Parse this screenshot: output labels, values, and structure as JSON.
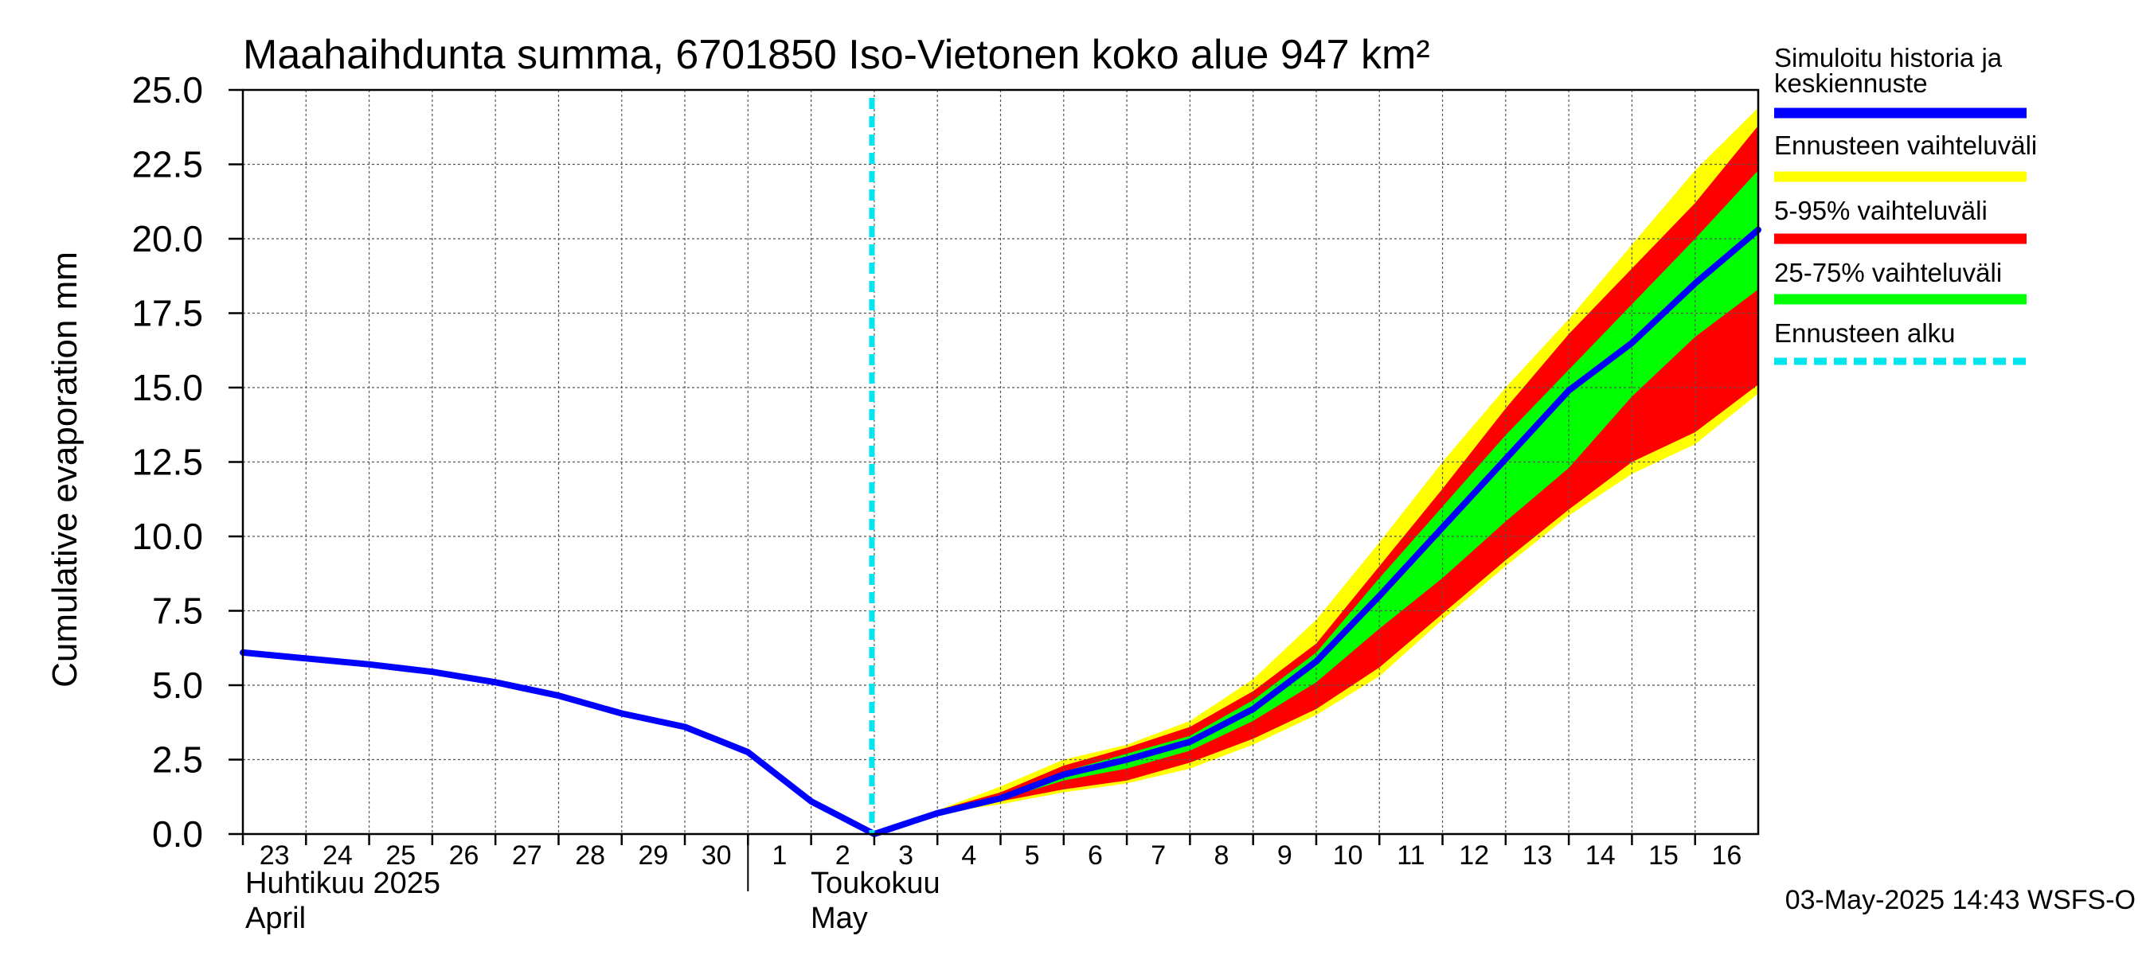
{
  "chart_data": {
    "type": "area",
    "title": "Maahaihdunta summa, 6701850 Iso-Vietonen koko alue 947 km²",
    "ylabel": "Cumulative evaporation   mm",
    "ylim": [
      0,
      25
    ],
    "yticks": [
      "0.0",
      "2.5",
      "5.0",
      "7.5",
      "10.0",
      "12.5",
      "15.0",
      "17.5",
      "20.0",
      "22.5",
      "25.0"
    ],
    "x_start": "2025-04-23",
    "x_end": "2025-05-17",
    "x_tick_labels": [
      {
        "date": "2025-04-23",
        "label": "23"
      },
      {
        "date": "2025-04-24",
        "label": "24"
      },
      {
        "date": "2025-04-25",
        "label": "25"
      },
      {
        "date": "2025-04-26",
        "label": "26"
      },
      {
        "date": "2025-04-27",
        "label": "27"
      },
      {
        "date": "2025-04-28",
        "label": "28"
      },
      {
        "date": "2025-04-29",
        "label": "29"
      },
      {
        "date": "2025-04-30",
        "label": "30"
      },
      {
        "date": "2025-05-01",
        "label": "1"
      },
      {
        "date": "2025-05-02",
        "label": "2"
      },
      {
        "date": "2025-05-03",
        "label": "3"
      },
      {
        "date": "2025-05-04",
        "label": "4"
      },
      {
        "date": "2025-05-05",
        "label": "5"
      },
      {
        "date": "2025-05-06",
        "label": "6"
      },
      {
        "date": "2025-05-07",
        "label": "7"
      },
      {
        "date": "2025-05-08",
        "label": "8"
      },
      {
        "date": "2025-05-09",
        "label": "9"
      },
      {
        "date": "2025-05-10",
        "label": "10"
      },
      {
        "date": "2025-05-11",
        "label": "11"
      },
      {
        "date": "2025-05-12",
        "label": "12"
      },
      {
        "date": "2025-05-13",
        "label": "13"
      },
      {
        "date": "2025-05-14",
        "label": "14"
      },
      {
        "date": "2025-05-15",
        "label": "15"
      },
      {
        "date": "2025-05-16",
        "label": "16"
      }
    ],
    "month_labels": {
      "april_fi": "Huhtikuu  2025",
      "april_en": "April",
      "may_fi": "Toukokuu",
      "may_en": "May"
    },
    "grid": true,
    "legend_position": "right",
    "forecast_start": "2025-05-03",
    "series": [
      {
        "name": "Simuloitu historia ja keskiennuste",
        "role": "median",
        "color": "#0000ff",
        "points": [
          [
            "2025-04-23",
            6.1
          ],
          [
            "2025-04-24",
            5.9
          ],
          [
            "2025-04-25",
            5.7
          ],
          [
            "2025-04-26",
            5.45
          ],
          [
            "2025-04-27",
            5.1
          ],
          [
            "2025-04-28",
            4.65
          ],
          [
            "2025-04-29",
            4.05
          ],
          [
            "2025-04-30",
            3.6
          ],
          [
            "2025-05-01",
            2.75
          ],
          [
            "2025-05-02",
            1.1
          ],
          [
            "2025-05-03",
            0.0
          ],
          [
            "2025-05-04",
            0.7
          ],
          [
            "2025-05-05",
            1.2
          ],
          [
            "2025-05-06",
            2.0
          ],
          [
            "2025-05-07",
            2.5
          ],
          [
            "2025-05-08",
            3.1
          ],
          [
            "2025-05-09",
            4.2
          ],
          [
            "2025-05-10",
            5.8
          ],
          [
            "2025-05-11",
            8.0
          ],
          [
            "2025-05-12",
            10.3
          ],
          [
            "2025-05-13",
            12.6
          ],
          [
            "2025-05-14",
            14.9
          ],
          [
            "2025-05-15",
            16.5
          ],
          [
            "2025-05-16",
            18.5
          ],
          [
            "2025-05-17",
            20.3
          ]
        ]
      },
      {
        "name": "Ennusteen vaihteluväli",
        "role": "band",
        "color": "#ffff00",
        "x": [
          "2025-05-03",
          "2025-05-04",
          "2025-05-05",
          "2025-05-06",
          "2025-05-07",
          "2025-05-08",
          "2025-05-09",
          "2025-05-10",
          "2025-05-11",
          "2025-05-12",
          "2025-05-13",
          "2025-05-14",
          "2025-05-15",
          "2025-05-16",
          "2025-05-17"
        ],
        "upper": [
          0.0,
          0.8,
          1.6,
          2.5,
          3.0,
          3.8,
          5.2,
          7.2,
          9.8,
          12.5,
          15.0,
          17.3,
          19.8,
          22.3,
          24.4
        ],
        "lower": [
          0.0,
          0.7,
          1.0,
          1.4,
          1.7,
          2.2,
          3.0,
          4.0,
          5.3,
          7.2,
          9.0,
          10.7,
          12.1,
          13.1,
          14.8
        ]
      },
      {
        "name": "5-95% vaihteluväli",
        "role": "band",
        "color": "#ff0000",
        "x": [
          "2025-05-03",
          "2025-05-04",
          "2025-05-05",
          "2025-05-06",
          "2025-05-07",
          "2025-05-08",
          "2025-05-09",
          "2025-05-10",
          "2025-05-11",
          "2025-05-12",
          "2025-05-13",
          "2025-05-14",
          "2025-05-15",
          "2025-05-16",
          "2025-05-17"
        ],
        "upper": [
          0.0,
          0.8,
          1.4,
          2.3,
          2.9,
          3.6,
          4.8,
          6.4,
          9.0,
          11.6,
          14.3,
          16.8,
          19.0,
          21.2,
          23.8
        ],
        "lower": [
          0.0,
          0.7,
          1.1,
          1.5,
          1.8,
          2.4,
          3.2,
          4.2,
          5.6,
          7.4,
          9.2,
          10.9,
          12.5,
          13.5,
          15.1
        ]
      },
      {
        "name": "25-75% vaihteluväli",
        "role": "band",
        "color": "#00ff00",
        "x": [
          "2025-05-03",
          "2025-05-04",
          "2025-05-05",
          "2025-05-06",
          "2025-05-07",
          "2025-05-08",
          "2025-05-09",
          "2025-05-10",
          "2025-05-11",
          "2025-05-12",
          "2025-05-13",
          "2025-05-14",
          "2025-05-15",
          "2025-05-16",
          "2025-05-17"
        ],
        "upper": [
          0.0,
          0.75,
          1.3,
          2.1,
          2.7,
          3.3,
          4.5,
          6.1,
          8.6,
          11.0,
          13.4,
          15.6,
          17.8,
          20.0,
          22.3
        ],
        "lower": [
          0.0,
          0.7,
          1.15,
          1.8,
          2.2,
          2.8,
          3.8,
          5.1,
          6.9,
          8.6,
          10.5,
          12.3,
          14.7,
          16.7,
          18.3
        ]
      }
    ],
    "forecast_marker": {
      "name": "Ennusteen alku",
      "color": "#00e5ee"
    },
    "legend": [
      {
        "label": "Simuloitu historia ja\nkeskiennuste",
        "color": "#0000ff",
        "style": "solid"
      },
      {
        "label": "Ennusteen vaihteluväli",
        "color": "#ffff00",
        "style": "solid"
      },
      {
        "label": "5-95% vaihteluväli",
        "color": "#ff0000",
        "style": "solid"
      },
      {
        "label": "25-75% vaihteluväli",
        "color": "#00ff00",
        "style": "solid"
      },
      {
        "label": "Ennusteen alku",
        "color": "#00e5ee",
        "style": "dashed"
      }
    ],
    "timestamp": "03-May-2025 14:43 WSFS-O"
  }
}
